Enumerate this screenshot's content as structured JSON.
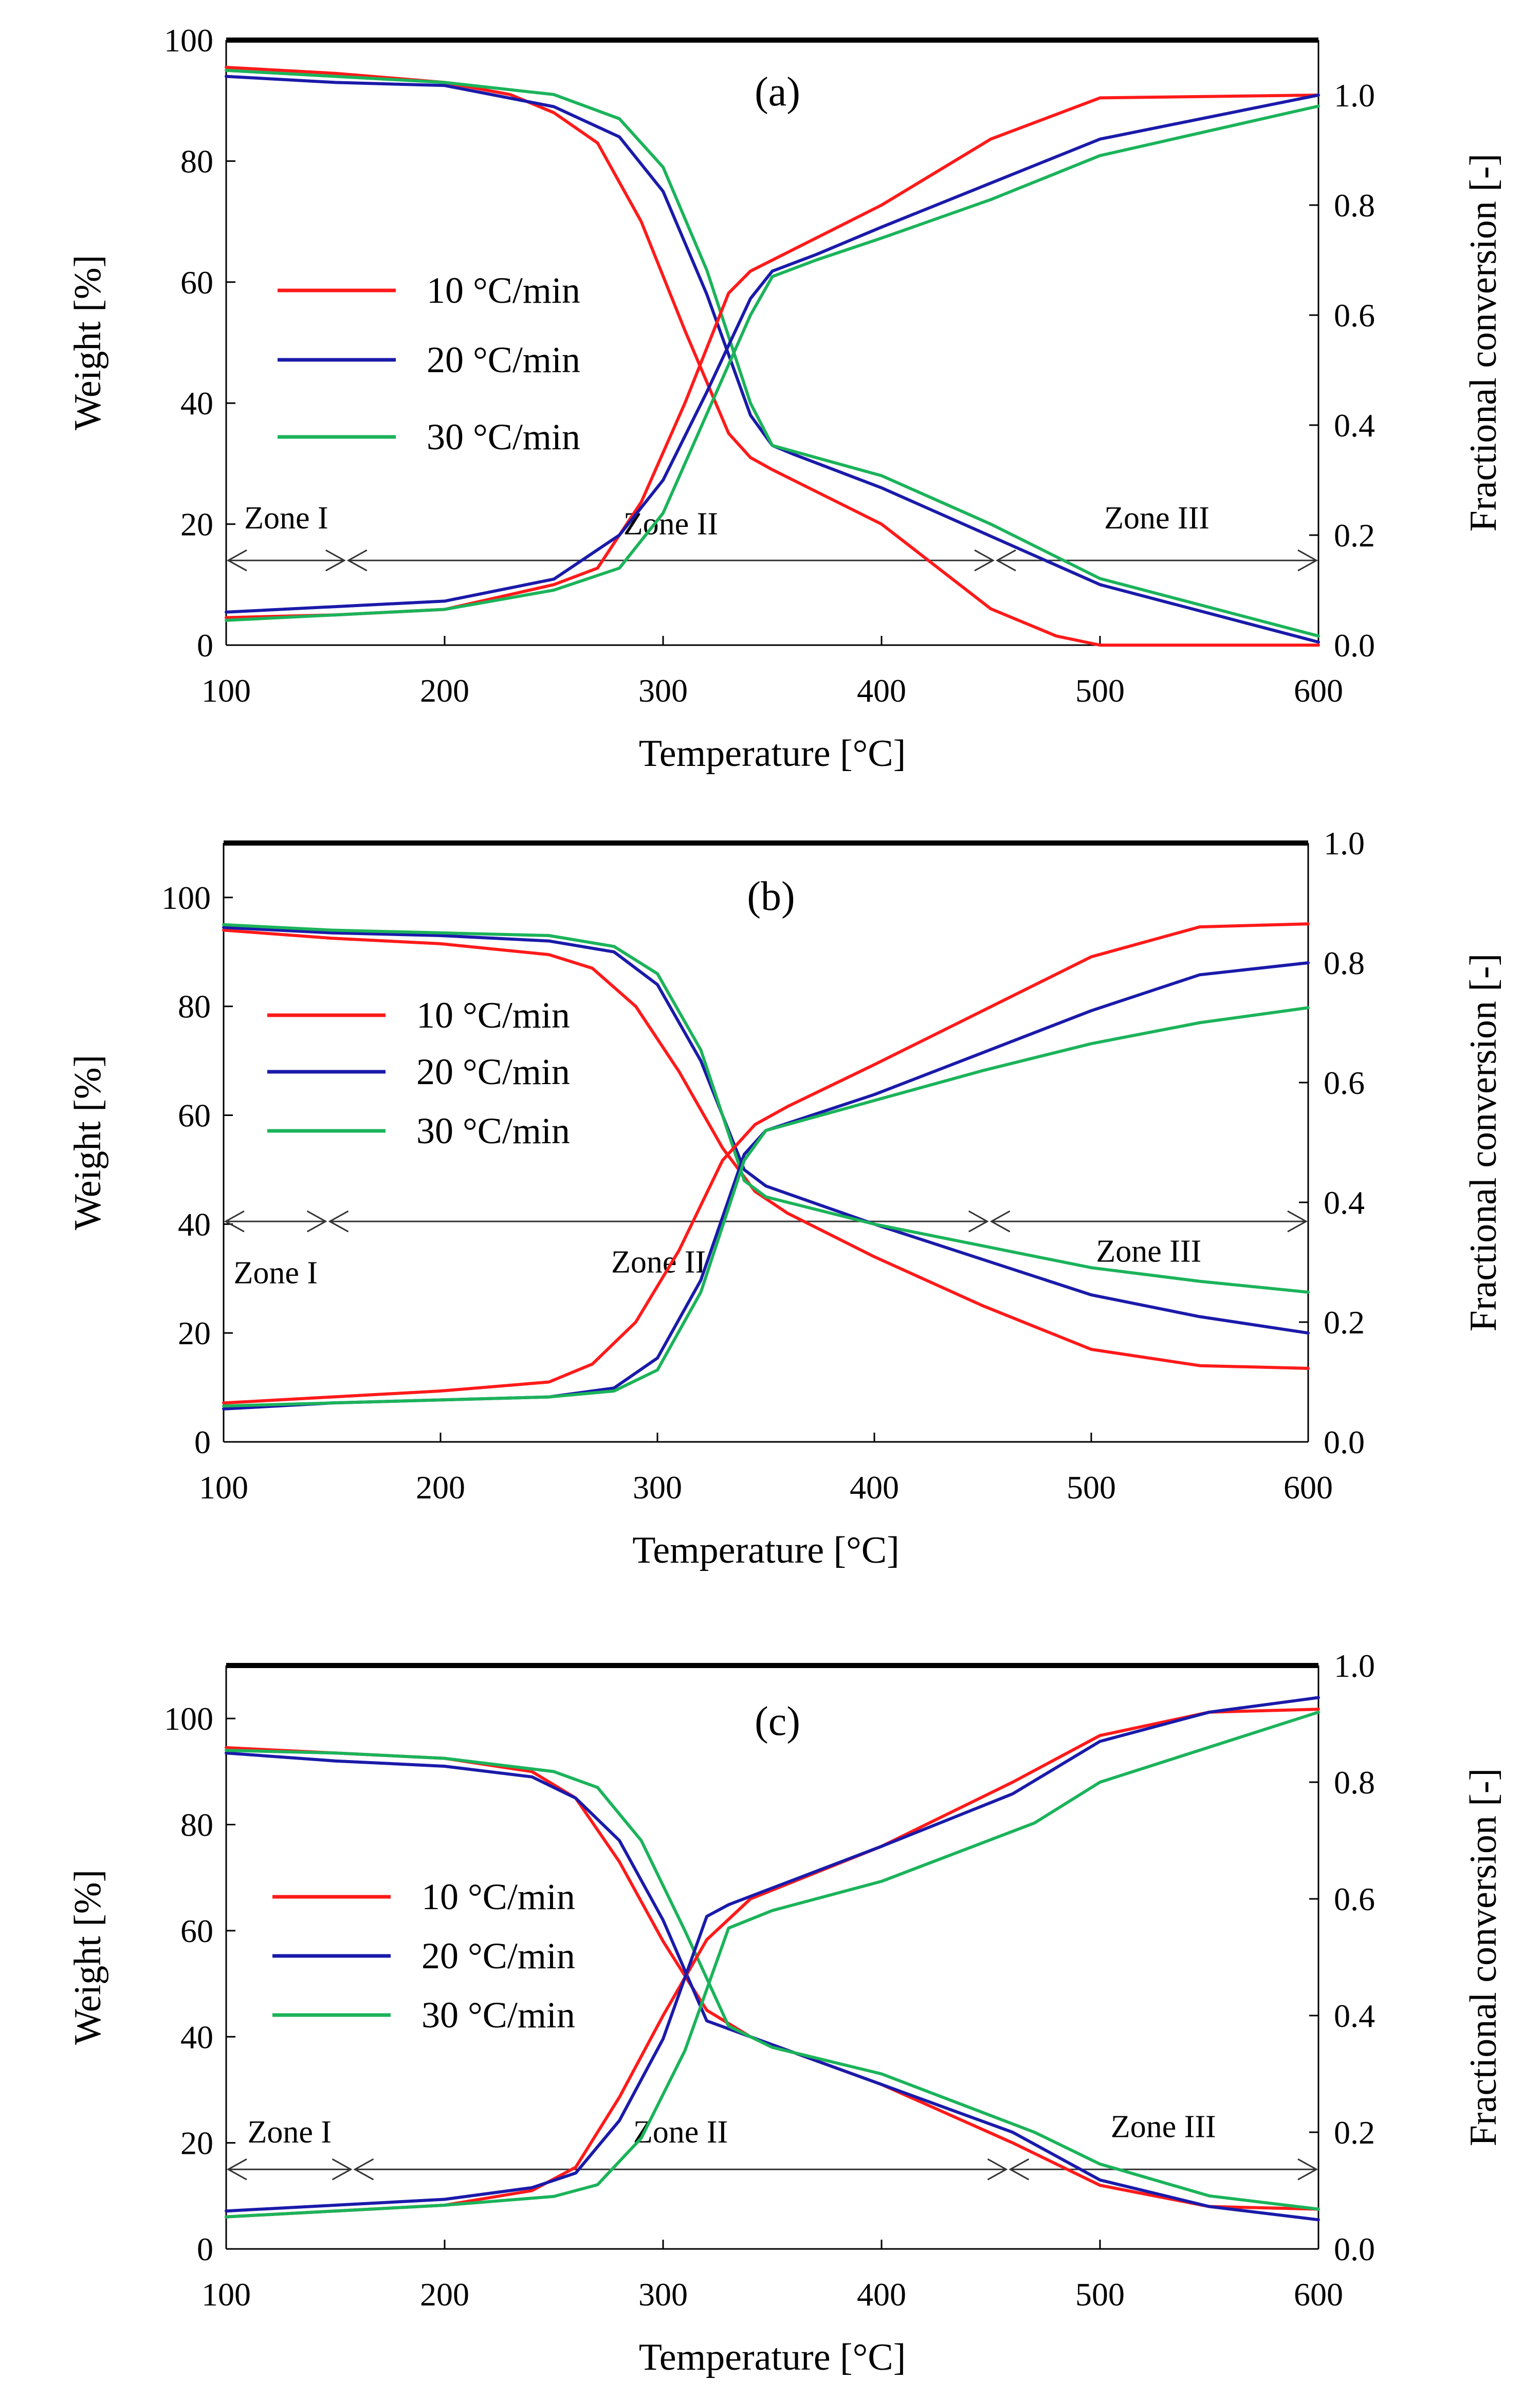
{
  "figure": {
    "legend_labels": [
      "10 °C/min",
      "20 °C/min",
      "30 °C/min"
    ]
  },
  "chart_data": [
    {
      "type": "line",
      "panel": "(a)",
      "title": "(a)",
      "xlabel": "Temperature [°C]",
      "ylabel": "Weight [%]",
      "y2label": "Fractional conversion  [-]",
      "xlim": [
        100,
        600
      ],
      "ylim": [
        0,
        100
      ],
      "y2lim": [
        0,
        1.1
      ],
      "xticks": [
        100,
        200,
        300,
        400,
        500,
        600
      ],
      "yticks": [
        0,
        20,
        40,
        60,
        80,
        100
      ],
      "y2ticks": [
        0.0,
        0.2,
        0.4,
        0.6,
        0.8,
        1.0
      ],
      "xtick_labels": [
        "100",
        "200",
        "300",
        "400",
        "500",
        "600"
      ],
      "ytick_labels": [
        "0",
        "20",
        "40",
        "60",
        "80",
        "100"
      ],
      "y2tick_labels": [
        "0.0",
        "0.2",
        "0.4",
        "0.6",
        "0.8",
        "1.0"
      ],
      "legend": [
        "10 °C/min",
        "20 °C/min",
        "30 °C/min"
      ],
      "zones": [
        {
          "label": "Zone I",
          "x_start": 100,
          "x_end": 155
        },
        {
          "label": "Zone II",
          "x_start": 155,
          "x_end": 452
        },
        {
          "label": "Zone III",
          "x_start": 452,
          "x_end": 600
        }
      ],
      "zone_arrow_y": 14,
      "zone_label_y": [
        21,
        20,
        21
      ],
      "series": [
        {
          "name": "10 °C/min",
          "axis": "y",
          "x": [
            100,
            150,
            200,
            230,
            250,
            270,
            290,
            310,
            330,
            340,
            350,
            400,
            450,
            480,
            500,
            600
          ],
          "values": [
            95.5,
            94.5,
            93,
            91,
            88,
            83,
            70,
            52,
            35,
            31,
            29,
            20,
            6,
            1.5,
            0,
            0
          ]
        },
        {
          "name": "20 °C/min",
          "axis": "y",
          "x": [
            100,
            150,
            200,
            250,
            280,
            300,
            320,
            340,
            350,
            360,
            400,
            450,
            500,
            600
          ],
          "values": [
            94,
            93,
            92.5,
            89,
            84,
            75,
            58,
            38,
            33,
            31.5,
            26,
            18,
            10,
            0.5
          ]
        },
        {
          "name": "30 °C/min",
          "axis": "y",
          "x": [
            100,
            150,
            200,
            250,
            280,
            300,
            320,
            340,
            350,
            360,
            400,
            450,
            500,
            600
          ],
          "values": [
            95,
            94,
            93,
            91,
            87,
            79,
            62,
            40,
            33,
            32,
            28,
            20,
            11,
            1.5
          ]
        },
        {
          "name": "10 °C/min",
          "axis": "y2",
          "x": [
            100,
            150,
            200,
            250,
            270,
            290,
            310,
            330,
            340,
            360,
            400,
            450,
            500,
            600
          ],
          "values": [
            0.05,
            0.055,
            0.065,
            0.11,
            0.14,
            0.26,
            0.44,
            0.64,
            0.68,
            0.72,
            0.8,
            0.92,
            0.995,
            1.0
          ]
        },
        {
          "name": "20 °C/min",
          "axis": "y2",
          "x": [
            100,
            150,
            200,
            250,
            280,
            300,
            320,
            340,
            350,
            370,
            400,
            450,
            500,
            600
          ],
          "values": [
            0.06,
            0.07,
            0.08,
            0.12,
            0.2,
            0.3,
            0.46,
            0.63,
            0.68,
            0.71,
            0.76,
            0.84,
            0.92,
            1.0
          ]
        },
        {
          "name": "30 °C/min",
          "axis": "y2",
          "x": [
            100,
            150,
            200,
            250,
            280,
            300,
            320,
            340,
            350,
            370,
            400,
            450,
            500,
            600
          ],
          "values": [
            0.045,
            0.055,
            0.065,
            0.1,
            0.14,
            0.24,
            0.42,
            0.6,
            0.67,
            0.7,
            0.74,
            0.81,
            0.89,
            0.98
          ]
        }
      ]
    },
    {
      "type": "line",
      "panel": "(b)",
      "title": "(b)",
      "xlabel": "Temperature [°C]",
      "ylabel": "Weight [%]",
      "y2label": "Fractional conversion  [-]",
      "xlim": [
        100,
        600
      ],
      "ylim": [
        0,
        110
      ],
      "y2lim": [
        0,
        1.0
      ],
      "xticks": [
        100,
        200,
        300,
        400,
        500,
        600
      ],
      "yticks": [
        0,
        20,
        40,
        60,
        80,
        100
      ],
      "y2ticks": [
        0.0,
        0.2,
        0.4,
        0.6,
        0.8,
        1.0
      ],
      "xtick_labels": [
        "100",
        "200",
        "300",
        "400",
        "500",
        "600"
      ],
      "ytick_labels": [
        "0",
        "20",
        "40",
        "60",
        "80",
        "100"
      ],
      "y2tick_labels": [
        "0.0",
        "0.2",
        "0.4",
        "0.6",
        "0.8",
        "1.0"
      ],
      "legend": [
        "10 °C/min",
        "20 °C/min",
        "30 °C/min"
      ],
      "zones": [
        {
          "label": "Zone I",
          "x_start": 100,
          "x_end": 148
        },
        {
          "label": "Zone II",
          "x_start": 148,
          "x_end": 453
        },
        {
          "label": "Zone III",
          "x_start": 453,
          "x_end": 600
        }
      ],
      "zone_arrow_y": 40.5,
      "zone_label_y": [
        31,
        33,
        35
      ],
      "series": [
        {
          "name": "10 °C/min",
          "axis": "y",
          "x": [
            100,
            150,
            200,
            250,
            270,
            290,
            310,
            330,
            345,
            360,
            400,
            450,
            500,
            550,
            600
          ],
          "values": [
            94,
            92.5,
            91.5,
            89.5,
            87,
            80,
            68,
            54,
            46,
            42,
            34,
            25,
            17,
            14,
            13.5
          ]
        },
        {
          "name": "20 °C/min",
          "axis": "y",
          "x": [
            100,
            150,
            200,
            250,
            280,
            300,
            320,
            340,
            350,
            400,
            450,
            500,
            550,
            600
          ],
          "values": [
            94.5,
            93.5,
            93,
            92,
            90,
            84,
            70,
            50,
            47,
            40,
            33.5,
            27,
            23,
            20
          ]
        },
        {
          "name": "30 °C/min",
          "axis": "y",
          "x": [
            100,
            150,
            200,
            250,
            280,
            300,
            320,
            340,
            350,
            400,
            450,
            500,
            550,
            600
          ],
          "values": [
            95,
            94,
            93.5,
            93,
            91,
            86,
            72,
            48,
            45,
            40,
            36,
            32,
            29.5,
            27.5
          ]
        },
        {
          "name": "10 °C/min",
          "axis": "y2",
          "x": [
            100,
            150,
            200,
            250,
            270,
            290,
            310,
            330,
            345,
            360,
            400,
            450,
            500,
            550,
            600
          ],
          "values": [
            0.065,
            0.075,
            0.085,
            0.1,
            0.13,
            0.2,
            0.32,
            0.47,
            0.53,
            0.56,
            0.63,
            0.72,
            0.81,
            0.86,
            0.865
          ]
        },
        {
          "name": "20 °C/min",
          "axis": "y2",
          "x": [
            100,
            150,
            200,
            250,
            280,
            300,
            320,
            340,
            350,
            400,
            450,
            500,
            550,
            600
          ],
          "values": [
            0.055,
            0.065,
            0.07,
            0.075,
            0.09,
            0.14,
            0.27,
            0.48,
            0.52,
            0.58,
            0.65,
            0.72,
            0.78,
            0.8
          ]
        },
        {
          "name": "30 °C/min",
          "axis": "y2",
          "x": [
            100,
            150,
            200,
            250,
            280,
            300,
            320,
            340,
            350,
            400,
            450,
            500,
            550,
            600
          ],
          "values": [
            0.06,
            0.065,
            0.07,
            0.075,
            0.085,
            0.12,
            0.25,
            0.47,
            0.52,
            0.57,
            0.62,
            0.665,
            0.7,
            0.725
          ]
        }
      ]
    },
    {
      "type": "line",
      "panel": "(c)",
      "title": "(c)",
      "xlabel": "Temperature [°C]",
      "ylabel": "Weight [%]",
      "y2label": "Fractional conversion  [-]",
      "xlim": [
        100,
        600
      ],
      "ylim": [
        0,
        110
      ],
      "y2lim": [
        0,
        1.0
      ],
      "xticks": [
        100,
        200,
        300,
        400,
        500,
        600
      ],
      "yticks": [
        0,
        20,
        40,
        60,
        80,
        100
      ],
      "y2ticks": [
        0.0,
        0.2,
        0.4,
        0.6,
        0.8,
        1.0
      ],
      "xtick_labels": [
        "100",
        "200",
        "300",
        "400",
        "500",
        "600"
      ],
      "ytick_labels": [
        "0",
        "20",
        "40",
        "60",
        "80",
        "100"
      ],
      "y2tick_labels": [
        "0.0",
        "0.2",
        "0.4",
        "0.6",
        "0.8",
        "1.0"
      ],
      "legend": [
        "10 °C/min",
        "20 °C/min",
        "30 °C/min"
      ],
      "zones": [
        {
          "label": "Zone I",
          "x_start": 100,
          "x_end": 158
        },
        {
          "label": "Zone II",
          "x_start": 158,
          "x_end": 458
        },
        {
          "label": "Zone III",
          "x_start": 458,
          "x_end": 600
        }
      ],
      "zone_arrow_y": 15,
      "zone_label_y": [
        22,
        22,
        23
      ],
      "series": [
        {
          "name": "10 °C/min",
          "axis": "y",
          "x": [
            100,
            150,
            200,
            240,
            260,
            280,
            300,
            320,
            340,
            400,
            460,
            500,
            550,
            600
          ],
          "values": [
            94.5,
            93.5,
            92.5,
            90,
            85,
            73,
            58,
            45,
            40,
            31,
            20,
            12,
            8,
            7.5
          ]
        },
        {
          "name": "20 °C/min",
          "axis": "y",
          "x": [
            100,
            150,
            200,
            240,
            260,
            280,
            300,
            320,
            340,
            400,
            460,
            500,
            550,
            600
          ],
          "values": [
            93.5,
            92,
            91,
            89,
            85,
            77,
            62,
            43,
            40,
            31,
            22,
            13,
            8,
            5.5
          ]
        },
        {
          "name": "30 °C/min",
          "axis": "y",
          "x": [
            100,
            150,
            200,
            250,
            270,
            290,
            310,
            330,
            350,
            400,
            470,
            500,
            550,
            600
          ],
          "values": [
            94,
            93.5,
            92.5,
            90,
            87,
            77,
            60,
            42,
            38,
            33,
            22,
            16,
            10,
            7.5
          ]
        },
        {
          "name": "10 °C/min",
          "axis": "y2",
          "x": [
            100,
            150,
            200,
            240,
            260,
            280,
            300,
            320,
            340,
            400,
            460,
            500,
            550,
            600
          ],
          "values": [
            0.055,
            0.065,
            0.075,
            0.1,
            0.14,
            0.26,
            0.4,
            0.53,
            0.6,
            0.69,
            0.8,
            0.88,
            0.92,
            0.925
          ]
        },
        {
          "name": "20 °C/min",
          "axis": "y2",
          "x": [
            100,
            150,
            200,
            240,
            260,
            280,
            300,
            320,
            330,
            400,
            460,
            500,
            550,
            600
          ],
          "values": [
            0.065,
            0.075,
            0.085,
            0.105,
            0.13,
            0.22,
            0.36,
            0.57,
            0.59,
            0.69,
            0.78,
            0.87,
            0.92,
            0.945
          ]
        },
        {
          "name": "30 °C/min",
          "axis": "y2",
          "x": [
            100,
            150,
            200,
            250,
            270,
            290,
            310,
            330,
            350,
            400,
            470,
            500,
            550,
            600
          ],
          "values": [
            0.055,
            0.065,
            0.075,
            0.09,
            0.11,
            0.19,
            0.34,
            0.55,
            0.58,
            0.63,
            0.73,
            0.8,
            0.86,
            0.92
          ]
        }
      ]
    }
  ]
}
